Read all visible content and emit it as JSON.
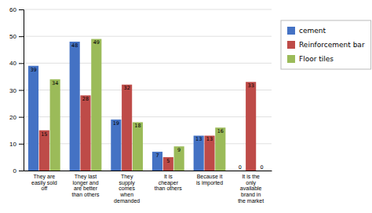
{
  "chart_data": {
    "type": "bar",
    "categories": [
      "They are\neasily sold\noff",
      "They last\nlonger and\nare better\nthan others",
      "They\nsupply\ncomes\nwhen\ndemanded",
      "It is\ncheaper\nthan others",
      "Because it\nis imported",
      "It is the\nonly\navailable\nbrand in\nthe market"
    ],
    "series": [
      {
        "name": "cement",
        "color": "#4472C4",
        "values": [
          39,
          48,
          19,
          7,
          13,
          0
        ]
      },
      {
        "name": "Reinforcement bar",
        "color": "#BE4B48",
        "values": [
          15,
          28,
          32,
          5,
          13,
          33
        ]
      },
      {
        "name": "Floor tiles",
        "color": "#9BBB59",
        "values": [
          34,
          49,
          18,
          9,
          16,
          0
        ]
      }
    ],
    "ylim": [
      0,
      60
    ],
    "yticks": [
      0,
      10,
      20,
      30,
      40,
      50,
      60
    ],
    "grid": true,
    "legend": "right",
    "data_labels": true
  }
}
